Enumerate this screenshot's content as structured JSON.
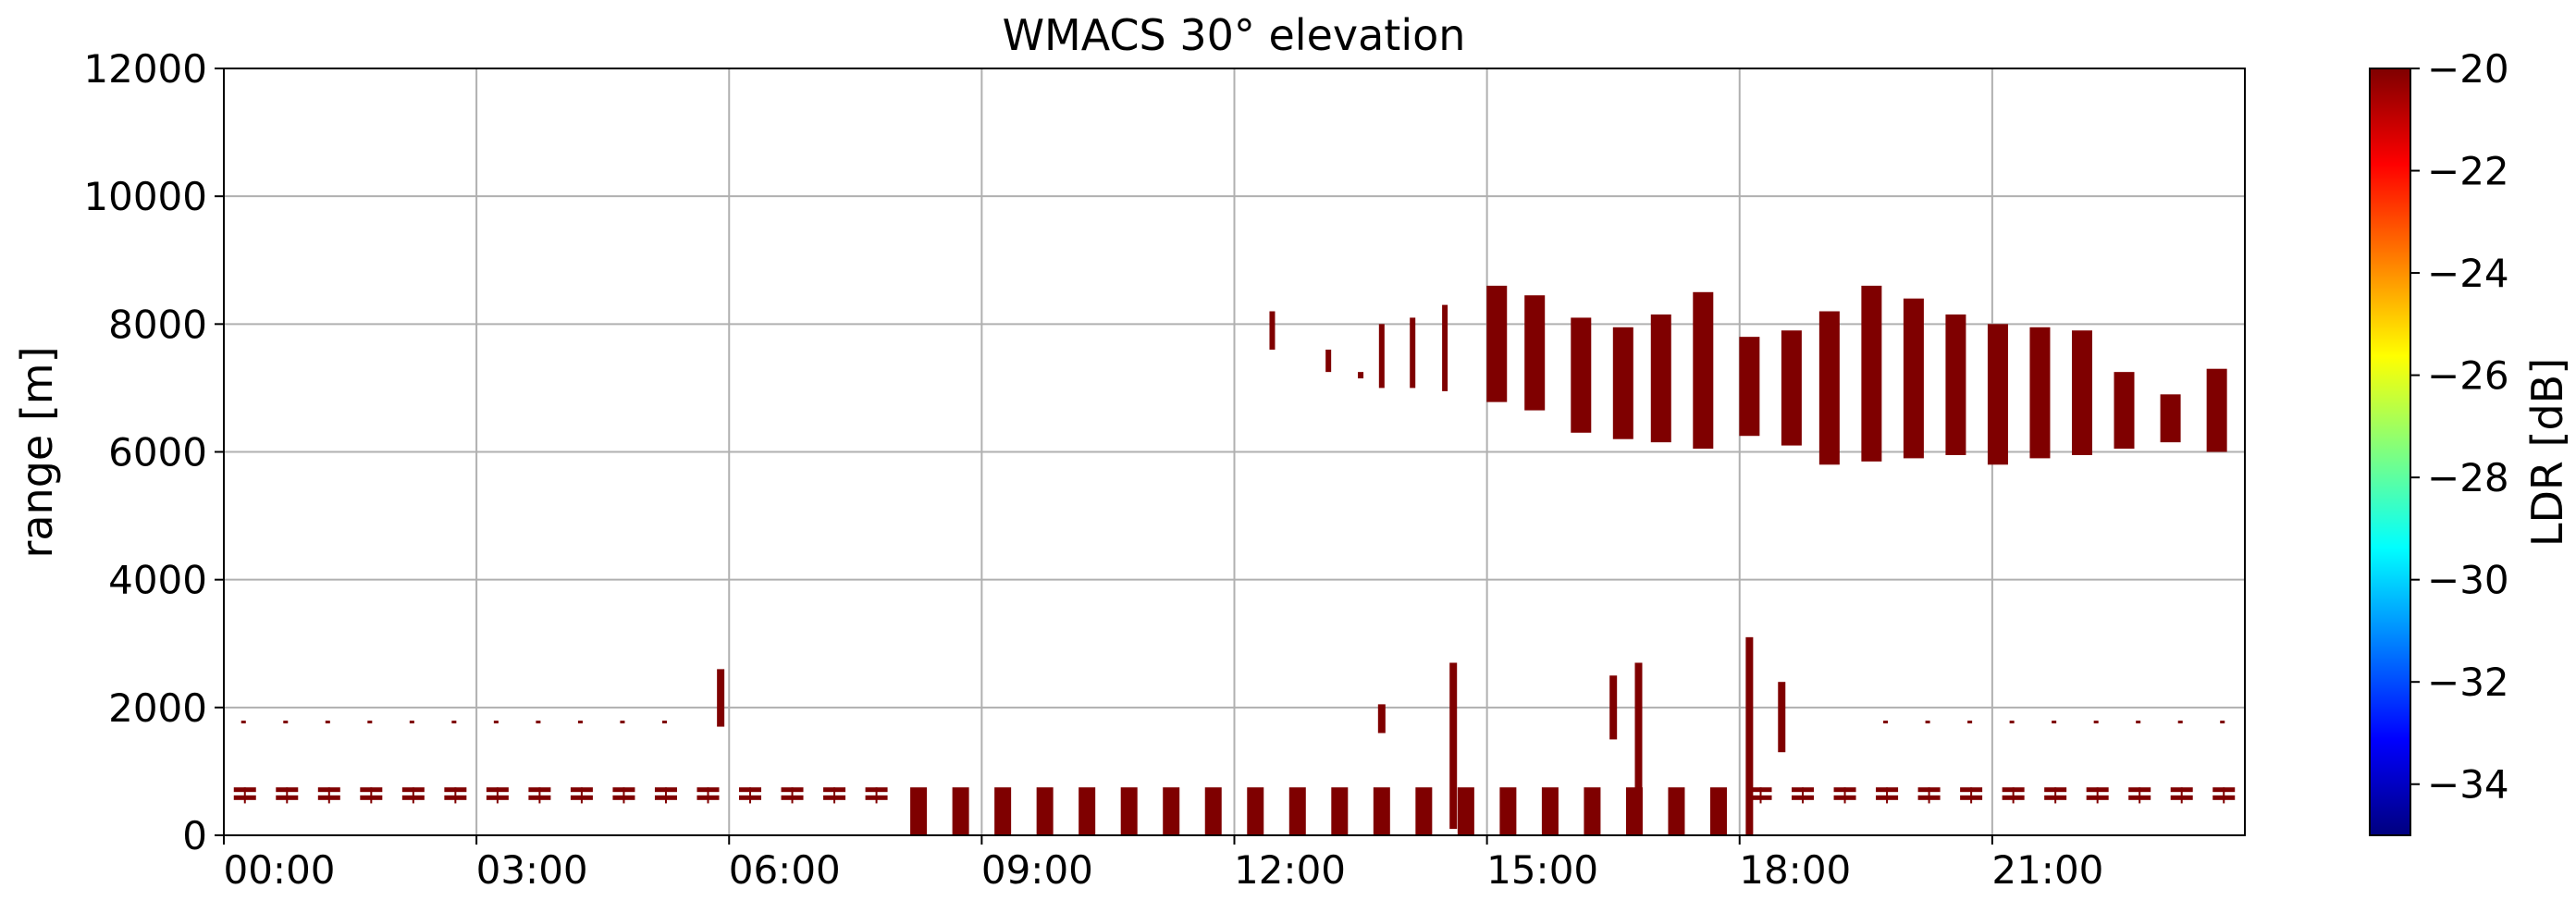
{
  "chart_data": {
    "type": "heatmap",
    "title": "WMACS 30° elevation",
    "xlabel": "",
    "ylabel": "range [m]",
    "xlim": [
      "00:00",
      "23:59"
    ],
    "ylim": [
      0,
      12000
    ],
    "x_ticks": [
      "00:00",
      "03:00",
      "06:00",
      "09:00",
      "12:00",
      "15:00",
      "18:00",
      "21:00"
    ],
    "y_ticks": [
      0,
      2000,
      4000,
      6000,
      8000,
      10000,
      12000
    ],
    "grid": true,
    "colorbar": {
      "label": "LDR [dB]",
      "range": [
        -35,
        -20
      ],
      "ticks": [
        "−20",
        "−22",
        "−24",
        "−26",
        "−28",
        "−30",
        "−32",
        "−34"
      ],
      "tick_values": [
        -20,
        -22,
        -24,
        -26,
        -28,
        -30,
        -32,
        -34
      ],
      "colormap": "jet",
      "colors": [
        "#00007f",
        "#0000ff",
        "#007fff",
        "#00ffff",
        "#7fff7f",
        "#ffff00",
        "#ff7f00",
        "#ff0000",
        "#7f0000"
      ]
    },
    "echo_color": "#7f0000",
    "upper_layer": {
      "ldr_db": -20,
      "columns": [
        {
          "time": "15:07",
          "bottom_m": 6780,
          "top_m": 8600
        },
        {
          "time": "15:34",
          "bottom_m": 6650,
          "top_m": 8450
        },
        {
          "time": "16:07",
          "bottom_m": 6300,
          "top_m": 8100
        },
        {
          "time": "16:37",
          "bottom_m": 6200,
          "top_m": 7950
        },
        {
          "time": "17:04",
          "bottom_m": 6150,
          "top_m": 8150
        },
        {
          "time": "17:34",
          "bottom_m": 6050,
          "top_m": 8500
        },
        {
          "time": "18:07",
          "bottom_m": 6250,
          "top_m": 7800
        },
        {
          "time": "18:37",
          "bottom_m": 6100,
          "top_m": 7900
        },
        {
          "time": "19:04",
          "bottom_m": 5800,
          "top_m": 8200
        },
        {
          "time": "19:34",
          "bottom_m": 5850,
          "top_m": 8600
        },
        {
          "time": "20:04",
          "bottom_m": 5900,
          "top_m": 8400
        },
        {
          "time": "20:34",
          "bottom_m": 5950,
          "top_m": 8150
        },
        {
          "time": "21:04",
          "bottom_m": 5800,
          "top_m": 8000
        },
        {
          "time": "21:34",
          "bottom_m": 5900,
          "top_m": 7950
        },
        {
          "time": "22:04",
          "bottom_m": 5950,
          "top_m": 7900
        },
        {
          "time": "22:34",
          "bottom_m": 6050,
          "top_m": 7250
        },
        {
          "time": "23:07",
          "bottom_m": 6150,
          "top_m": 6900
        },
        {
          "time": "23:40",
          "bottom_m": 6000,
          "top_m": 7300
        }
      ],
      "fragments": [
        {
          "time": "12:27",
          "bottom_m": 7600,
          "top_m": 8200
        },
        {
          "time": "13:07",
          "bottom_m": 7250,
          "top_m": 7600
        },
        {
          "time": "13:30",
          "bottom_m": 7150,
          "top_m": 7250
        },
        {
          "time": "13:45",
          "bottom_m": 7000,
          "top_m": 8000
        },
        {
          "time": "14:07",
          "bottom_m": 7000,
          "top_m": 8100
        },
        {
          "time": "14:30",
          "bottom_m": 6950,
          "top_m": 8300
        }
      ]
    },
    "lower_layer": {
      "ldr_db": -20,
      "band_bottom_m": 500,
      "band_top_m": 750,
      "column_times": [
        "00:15",
        "00:45",
        "01:15",
        "01:45",
        "02:15",
        "02:45",
        "03:15",
        "03:45",
        "04:15",
        "04:45",
        "05:15",
        "05:45",
        "06:15",
        "06:45",
        "07:15",
        "07:45",
        "08:15",
        "08:45",
        "09:15",
        "09:45",
        "10:15",
        "10:45",
        "11:15",
        "11:45",
        "12:15",
        "12:45",
        "13:15",
        "13:45",
        "14:15",
        "14:45",
        "15:15",
        "15:45",
        "16:15",
        "16:45",
        "17:15",
        "17:45",
        "18:15",
        "18:45",
        "19:15",
        "19:45",
        "20:15",
        "20:45",
        "21:15",
        "21:45",
        "22:15",
        "22:45",
        "23:15",
        "23:45"
      ],
      "plumes": [
        {
          "time": "05:54",
          "bottom_m": 1700,
          "top_m": 2600
        },
        {
          "time": "13:45",
          "bottom_m": 1600,
          "top_m": 2050
        },
        {
          "time": "14:36",
          "bottom_m": 100,
          "top_m": 2700
        },
        {
          "time": "16:30",
          "bottom_m": 1500,
          "top_m": 2500
        },
        {
          "time": "16:48",
          "bottom_m": 0,
          "top_m": 2700
        },
        {
          "time": "18:07",
          "bottom_m": 0,
          "top_m": 3100
        },
        {
          "time": "18:30",
          "bottom_m": 1300,
          "top_m": 2400
        }
      ],
      "dots_m": 1780
    }
  }
}
